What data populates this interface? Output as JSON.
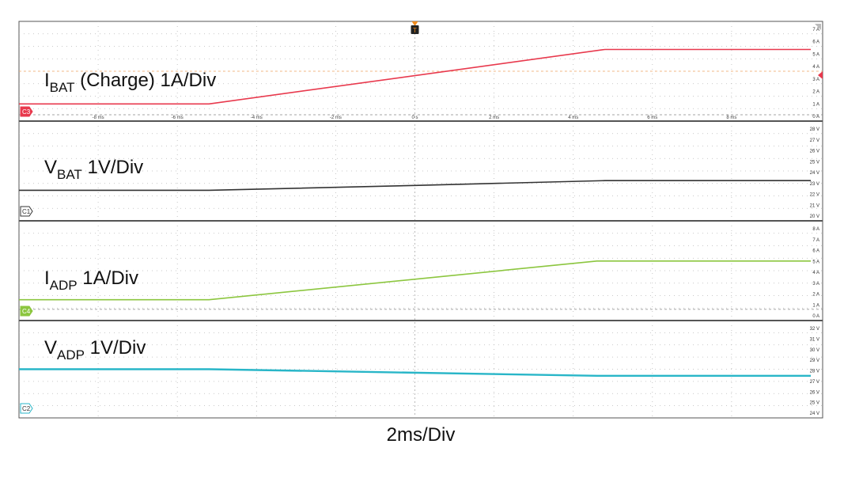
{
  "chart_data": {
    "type": "line",
    "xlabel": "2ms/Div",
    "trigger_marker": "T",
    "time_ticks": [
      "-8 ms",
      "-6 ms",
      "-4 ms",
      "-2 ms",
      "0 s",
      "2 ms",
      "4 ms",
      "6 ms",
      "8 ms"
    ],
    "x_unit": "ms",
    "xlim": [
      -10,
      10
    ],
    "panels": [
      {
        "id": "ibat",
        "label_main": "I",
        "label_sub": "BAT",
        "label_rest": " (Charge) 1A/Div",
        "channel": "C3",
        "color": "#e8394d",
        "badge_style": "filled",
        "y_ticks": [
          "7 A",
          "6 A",
          "5 A",
          "4 A",
          "3 A",
          "2 A",
          "1 A",
          "0 A"
        ],
        "ylim": [
          0,
          8
        ],
        "points": [
          [
            -10,
            1.0
          ],
          [
            -5.2,
            1.0
          ],
          [
            4.8,
            6.0
          ],
          [
            10,
            6.0
          ]
        ]
      },
      {
        "id": "vbat",
        "label_main": "V",
        "label_sub": "BAT",
        "label_rest": " 1V/Div",
        "channel": "C1",
        "color": "#333333",
        "badge_style": "outline",
        "y_ticks": [
          "28 V",
          "27 V",
          "26 V",
          "25 V",
          "24 V",
          "23 V",
          "22 V",
          "21 V",
          "20 V"
        ],
        "ylim": [
          19.5,
          28.5
        ],
        "points": [
          [
            -10,
            22.0
          ],
          [
            -5.2,
            22.0
          ],
          [
            0,
            22.5
          ],
          [
            4.8,
            23.0
          ],
          [
            10,
            23.0
          ]
        ]
      },
      {
        "id": "iadp",
        "label_main": "I",
        "label_sub": "ADP",
        "label_rest": " 1A/Div",
        "channel": "C4",
        "color": "#8cc63f",
        "badge_style": "filled",
        "y_ticks": [
          "8 A",
          "7 A",
          "6 A",
          "5 A",
          "4 A",
          "3 A",
          "2 A",
          "1 A",
          "0 A"
        ],
        "ylim": [
          -0.5,
          8.5
        ],
        "points": [
          [
            -10,
            1.0
          ],
          [
            -5.2,
            1.0
          ],
          [
            4.6,
            5.0
          ],
          [
            10,
            5.0
          ]
        ]
      },
      {
        "id": "vadp",
        "label_main": "V",
        "label_sub": "ADP",
        "label_rest": " 1V/Div",
        "channel": "C2",
        "color": "#29b6c8",
        "badge_style": "outline",
        "y_ticks": [
          "32 V",
          "31 V",
          "30 V",
          "29 V",
          "28 V",
          "27 V",
          "26 V",
          "25 V",
          "24 V"
        ],
        "ylim": [
          23.5,
          32.5
        ],
        "points": [
          [
            -10,
            28.0
          ],
          [
            -5.2,
            28.0
          ],
          [
            4.6,
            27.3
          ],
          [
            10,
            27.3
          ]
        ]
      }
    ]
  }
}
